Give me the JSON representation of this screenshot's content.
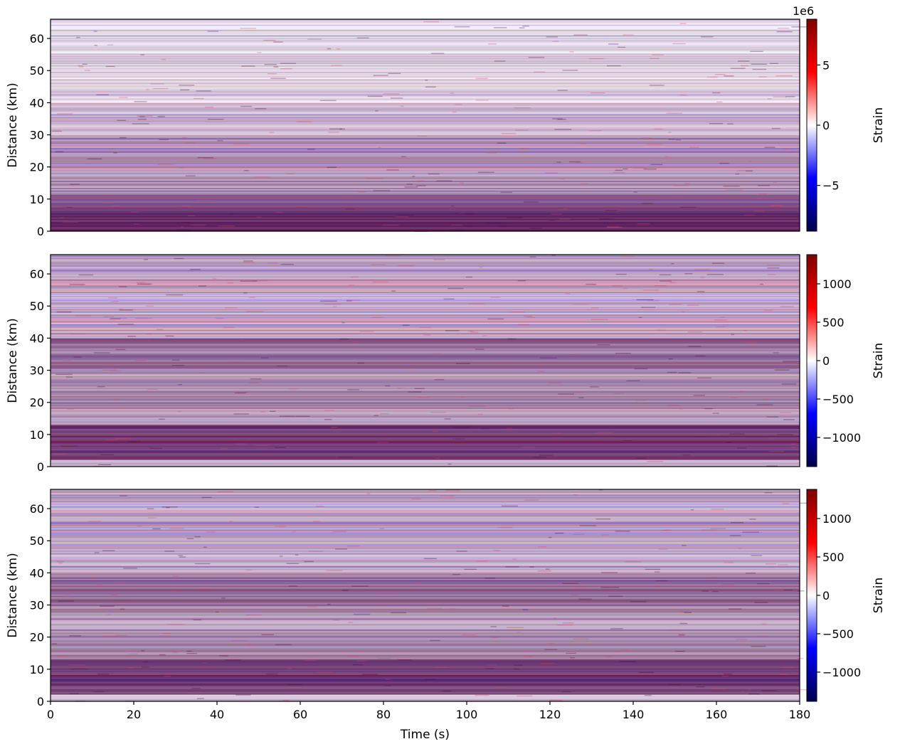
{
  "chart_data": [
    {
      "type": "heatmap",
      "panel": "top",
      "x": {
        "label": "",
        "lim": [
          0,
          180
        ],
        "ticks": [],
        "tick_labels_visible": false
      },
      "y": {
        "label": "Distance (km)",
        "lim": [
          0,
          66
        ],
        "ticks": [
          0,
          10,
          20,
          30,
          40,
          50,
          60
        ]
      },
      "colorbar": {
        "label": "Strain",
        "colormap": "seismic",
        "offset_text": "1e6",
        "range": [
          -8.8,
          8.8
        ],
        "ticks": [
          5,
          0,
          -5
        ],
        "tick_labels": [
          "5",
          "0",
          "−5"
        ]
      },
      "colors": {
        "low": "#00004c",
        "mid": "#ffffff",
        "high": "#800000",
        "band": "#5a1a55"
      }
    },
    {
      "type": "heatmap",
      "panel": "middle",
      "x": {
        "label": "",
        "lim": [
          0,
          180
        ],
        "ticks": [],
        "tick_labels_visible": false
      },
      "y": {
        "label": "Distance (km)",
        "lim": [
          0,
          66
        ],
        "ticks": [
          0,
          10,
          20,
          30,
          40,
          50,
          60
        ]
      },
      "colorbar": {
        "label": "Strain",
        "colormap": "seismic",
        "range": [
          -1380,
          1380
        ],
        "ticks": [
          1000,
          500,
          0,
          -500,
          -1000
        ],
        "tick_labels": [
          "1000",
          "500",
          "0",
          "−500",
          "−1000"
        ]
      },
      "colors": {
        "low": "#00004c",
        "mid": "#ffffff",
        "high": "#800000",
        "band": "#5a1a55"
      }
    },
    {
      "type": "heatmap",
      "panel": "bottom",
      "x": {
        "label": "Time (s)",
        "lim": [
          0,
          180
        ],
        "ticks": [
          0,
          20,
          40,
          60,
          80,
          100,
          120,
          140,
          160,
          180
        ]
      },
      "y": {
        "label": "Distance (km)",
        "lim": [
          0,
          66
        ],
        "ticks": [
          0,
          10,
          20,
          30,
          40,
          50,
          60
        ]
      },
      "colorbar": {
        "label": "Strain",
        "colormap": "seismic",
        "range": [
          -1380,
          1380
        ],
        "ticks": [
          1000,
          500,
          0,
          -500,
          -1000
        ],
        "tick_labels": [
          "1000",
          "500",
          "0",
          "−500",
          "−1000"
        ]
      },
      "colors": {
        "low": "#00004c",
        "mid": "#ffffff",
        "high": "#800000",
        "band": "#5a1a55"
      }
    }
  ]
}
